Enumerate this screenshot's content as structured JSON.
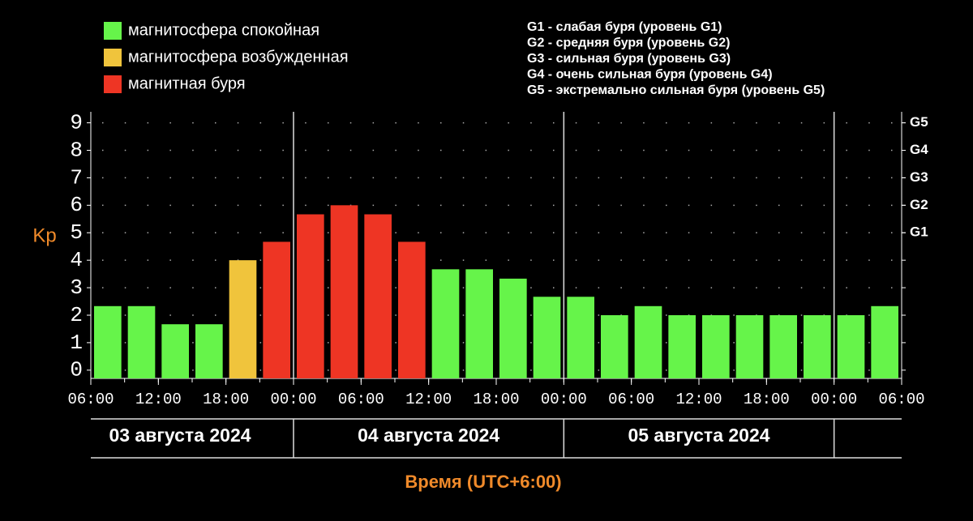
{
  "chart_data": {
    "type": "bar",
    "y_label": "Kp",
    "x_label": "Время (UTC+6:00)",
    "legend": [
      {
        "name": "магнитосфера спокойная",
        "color": "#66f44a"
      },
      {
        "name": "магнитосфера возбужденная",
        "color": "#f0c43c"
      },
      {
        "name": "магнитная буря",
        "color": "#ee3524"
      }
    ],
    "storm_levels": [
      "G1 - слабая буря (уровень G1)",
      "G2 - средняя буря (уровень G2)",
      "G3 - сильная буря (уровень G3)",
      "G4 - очень сильная буря (уровень G4)",
      "G5 - экстремально сильная буря (уровень G5)"
    ],
    "x_tick_labels": [
      "06:00",
      "12:00",
      "18:00",
      "00:00",
      "06:00",
      "12:00",
      "18:00",
      "00:00",
      "06:00",
      "12:00",
      "18:00",
      "00:00",
      "06:00"
    ],
    "days": [
      "03 августа 2024",
      "04 августа 2024",
      "05 августа 2024"
    ],
    "values": [
      2.33,
      2.33,
      1.67,
      1.67,
      4,
      4.67,
      5.67,
      6,
      5.67,
      4.67,
      3.67,
      3.67,
      3.33,
      2.67,
      2.67,
      2,
      2.33,
      2,
      2,
      2,
      2,
      2,
      2,
      2.33
    ],
    "colors": [
      "#66f44a",
      "#66f44a",
      "#66f44a",
      "#66f44a",
      "#f0c43c",
      "#ee3524",
      "#ee3524",
      "#ee3524",
      "#ee3524",
      "#ee3524",
      "#66f44a",
      "#66f44a",
      "#66f44a",
      "#66f44a",
      "#66f44a",
      "#66f44a",
      "#66f44a",
      "#66f44a",
      "#66f44a",
      "#66f44a",
      "#66f44a",
      "#66f44a",
      "#66f44a",
      "#66f44a"
    ],
    "ylim": [
      -0.3,
      9.4
    ],
    "yticks": [
      0,
      1,
      2,
      3,
      4,
      5,
      6,
      7,
      8,
      9
    ],
    "y2lim": [
      -0.3,
      9.4
    ],
    "y2ticks": [
      {
        "value": 5,
        "label": "G1"
      },
      {
        "value": 6,
        "label": "G2"
      },
      {
        "value": 7,
        "label": "G3"
      },
      {
        "value": 8,
        "label": "G4"
      },
      {
        "value": 9,
        "label": "G5"
      }
    ],
    "grid": true
  }
}
